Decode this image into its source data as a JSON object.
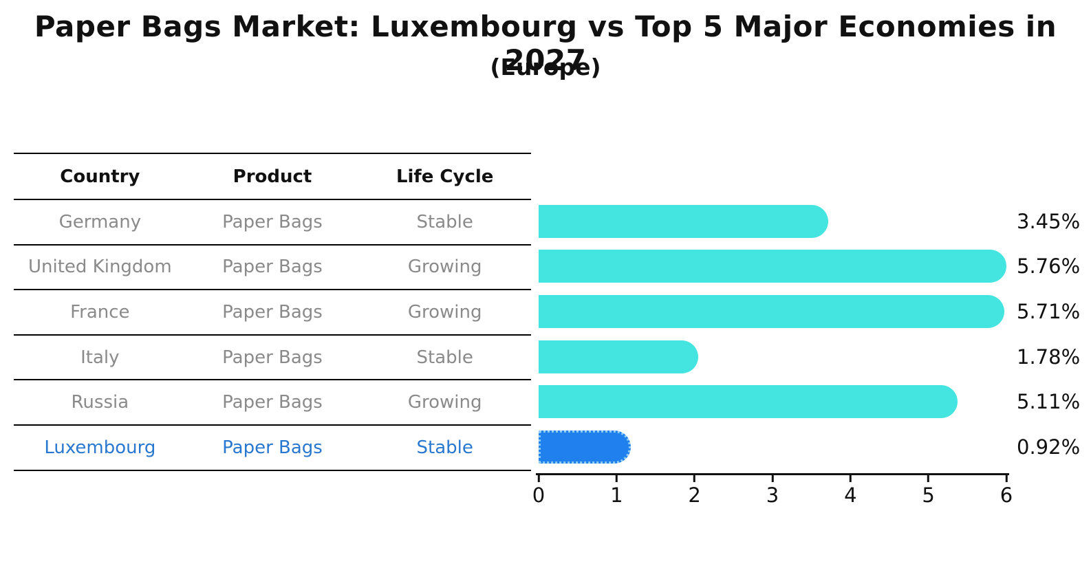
{
  "title": "Paper Bags Market: Luxembourg vs Top 5 Major Economies in 2027",
  "subtitle": "(Europe)",
  "table": {
    "headers": [
      "Country",
      "Product",
      "Life Cycle"
    ],
    "rows": [
      {
        "country": "Germany",
        "product": "Paper Bags",
        "life_cycle": "Stable",
        "highlight": false
      },
      {
        "country": "United Kingdom",
        "product": "Paper Bags",
        "life_cycle": "Growing",
        "highlight": false
      },
      {
        "country": "France",
        "product": "Paper Bags",
        "life_cycle": "Growing",
        "highlight": false
      },
      {
        "country": "Italy",
        "product": "Paper Bags",
        "life_cycle": "Stable",
        "highlight": false
      },
      {
        "country": "Russia",
        "product": "Paper Bags",
        "life_cycle": "Growing",
        "highlight": false
      },
      {
        "country": "Luxembourg",
        "product": "Paper Bags",
        "life_cycle": "Stable",
        "highlight": true
      }
    ]
  },
  "chart_data": {
    "type": "bar",
    "orientation": "horizontal",
    "title": "Paper Bags Market: Luxembourg vs Top 5 Major Economies in 2027",
    "subtitle": "(Europe)",
    "categories": [
      "Germany",
      "United Kingdom",
      "France",
      "Italy",
      "Russia",
      "Luxembourg"
    ],
    "values": [
      3.45,
      5.76,
      5.71,
      1.78,
      5.11,
      0.92
    ],
    "value_labels": [
      "3.45%",
      "5.76%",
      "5.71%",
      "1.78%",
      "5.11%",
      "0.92%"
    ],
    "xlim": [
      0,
      6
    ],
    "x_ticks": [
      "0",
      "1",
      "2",
      "3",
      "4",
      "5",
      "6"
    ],
    "grid": false,
    "legend": false,
    "bar_color": "#44e5e0",
    "highlight_color": "#1f80ee",
    "highlight_index": 5,
    "highlight_text_color": "#2878d0"
  }
}
